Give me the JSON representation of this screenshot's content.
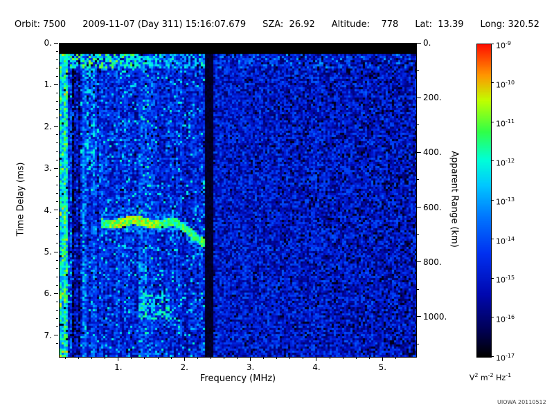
{
  "header": {
    "segments": [
      "Orbit: 7500",
      "2009-11-07 (Day 311) 15:16:07.679",
      "SZA:  26.92",
      "Altitude:    778",
      "Lat:  13.39",
      "Long: 320.52"
    ]
  },
  "chart_data": {
    "type": "heatmap",
    "subtype": "radar-sounder-ionogram-spectrogram",
    "xlabel": "Frequency (MHz)",
    "ylabel_left": "Time Delay (ms)",
    "ylabel_right": "Apparent Range (km)",
    "x_range": [
      0.1,
      5.5
    ],
    "x_ticks": [
      1,
      2,
      3,
      4,
      5
    ],
    "x_tick_labels": [
      "1.",
      "2.",
      "3.",
      "4.",
      "5."
    ],
    "y_range": [
      0,
      7.5
    ],
    "y_ticks": [
      0,
      1,
      2,
      3,
      4,
      5,
      6,
      7
    ],
    "y_tick_labels": [
      "0.",
      "1.",
      "2.",
      "3.",
      "4.",
      "5.",
      "6.",
      "7."
    ],
    "right_range": [
      0,
      1144
    ],
    "right_ticks": [
      0,
      200,
      400,
      600,
      800,
      1000
    ],
    "right_tick_labels": [
      "0.",
      "200.",
      "400.",
      "600.",
      "800.",
      "1000."
    ],
    "grid": false,
    "colormap": [
      [
        0.0,
        "#000000"
      ],
      [
        0.08,
        "#000050"
      ],
      [
        0.2,
        "#0008b0"
      ],
      [
        0.33,
        "#0030f0"
      ],
      [
        0.45,
        "#0078ff"
      ],
      [
        0.55,
        "#00c8ff"
      ],
      [
        0.63,
        "#00ffd8"
      ],
      [
        0.72,
        "#30ff48"
      ],
      [
        0.82,
        "#c0ff00"
      ],
      [
        0.9,
        "#ff9800"
      ],
      [
        1.0,
        "#ff1000"
      ]
    ],
    "colorbar": {
      "base": "10",
      "exponents": [
        "-9",
        "-10",
        "-11",
        "-12",
        "-13",
        "-14",
        "-15",
        "-16",
        "-17"
      ],
      "unit_parts": [
        "V",
        "2",
        " m",
        "-2",
        " Hz",
        "-1"
      ]
    },
    "features": {
      "description": "Blue noise field, brighter (cyan) below 2.3 MHz; black saturated band at top (0-0.25 ms); bright surface speckle just below; bright column below 0.25 MHz; dark column 0.3-0.4 MHz; black interference gap at 2.3-2.42 MHz; cyan-green ionospheric echo trace at ~4.3 ms from 0.7-1.8 MHz dipping to ~4.8 ms by 2.3 MHz; secondary echo blob 1.3-1.8 MHz at 6.0-6.6 ms; black dropouts increasing toward 5.5 MHz",
      "seed": 42,
      "noise_base": 0.28,
      "noise_amp": 0.3,
      "top_black_band_ms": 0.25,
      "surface_speckle_band": {
        "t_max": 0.6,
        "f_max": 2.3
      },
      "bright_left_column": {
        "f_max": 0.24,
        "boost": 0.22
      },
      "dark_column": {
        "f_min": 0.3,
        "f_max": 0.4,
        "drop": 0.18
      },
      "faint_bright_column": {
        "f_min": 1.28,
        "f_max": 1.5,
        "boost": 0.06
      },
      "interference_gap": {
        "f_min": 2.3,
        "f_max": 2.42
      },
      "echo_trace": {
        "f_min": 0.72,
        "f_max": 2.3,
        "t_start": 4.28,
        "dip_after_f": 1.8,
        "dip_rate": 0.9,
        "half_width": 0.11
      },
      "lower_blob": {
        "f_min": 1.28,
        "f_max": 1.78,
        "t_min": 6.0,
        "t_max": 6.62
      }
    }
  },
  "footer": {
    "watermark": "UIOWA 20110512"
  }
}
